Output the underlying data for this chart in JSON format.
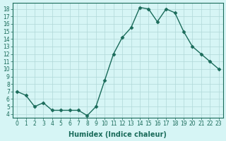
{
  "title": "",
  "xlabel": "Humidex (Indice chaleur)",
  "x": [
    0,
    1,
    2,
    3,
    4,
    5,
    6,
    7,
    8,
    9,
    10,
    11,
    12,
    13,
    14,
    15,
    16,
    17,
    18,
    19,
    20,
    21,
    22,
    23
  ],
  "y": [
    7.0,
    6.5,
    5.0,
    5.5,
    4.5,
    4.5,
    4.5,
    4.5,
    3.8,
    5.0,
    8.5,
    12.0,
    14.2,
    15.5,
    18.2,
    18.0,
    16.3,
    18.0,
    17.5,
    15.0,
    13.0,
    12.0,
    11.0,
    10.0
  ],
  "line_color": "#1a6b5a",
  "marker": "D",
  "marker_size": 2.5,
  "bg_color": "#d6f5f5",
  "grid_color": "#b0d8d8",
  "ylim": [
    3.5,
    18.8
  ],
  "xlim": [
    -0.5,
    23.5
  ],
  "yticks": [
    4,
    5,
    6,
    7,
    8,
    9,
    10,
    11,
    12,
    13,
    14,
    15,
    16,
    17,
    18
  ],
  "xticks": [
    0,
    1,
    2,
    3,
    4,
    5,
    6,
    7,
    8,
    9,
    10,
    11,
    12,
    13,
    14,
    15,
    16,
    17,
    18,
    19,
    20,
    21,
    22,
    23
  ],
  "tick_fontsize": 5.5,
  "xlabel_fontsize": 7,
  "line_width": 1.0
}
